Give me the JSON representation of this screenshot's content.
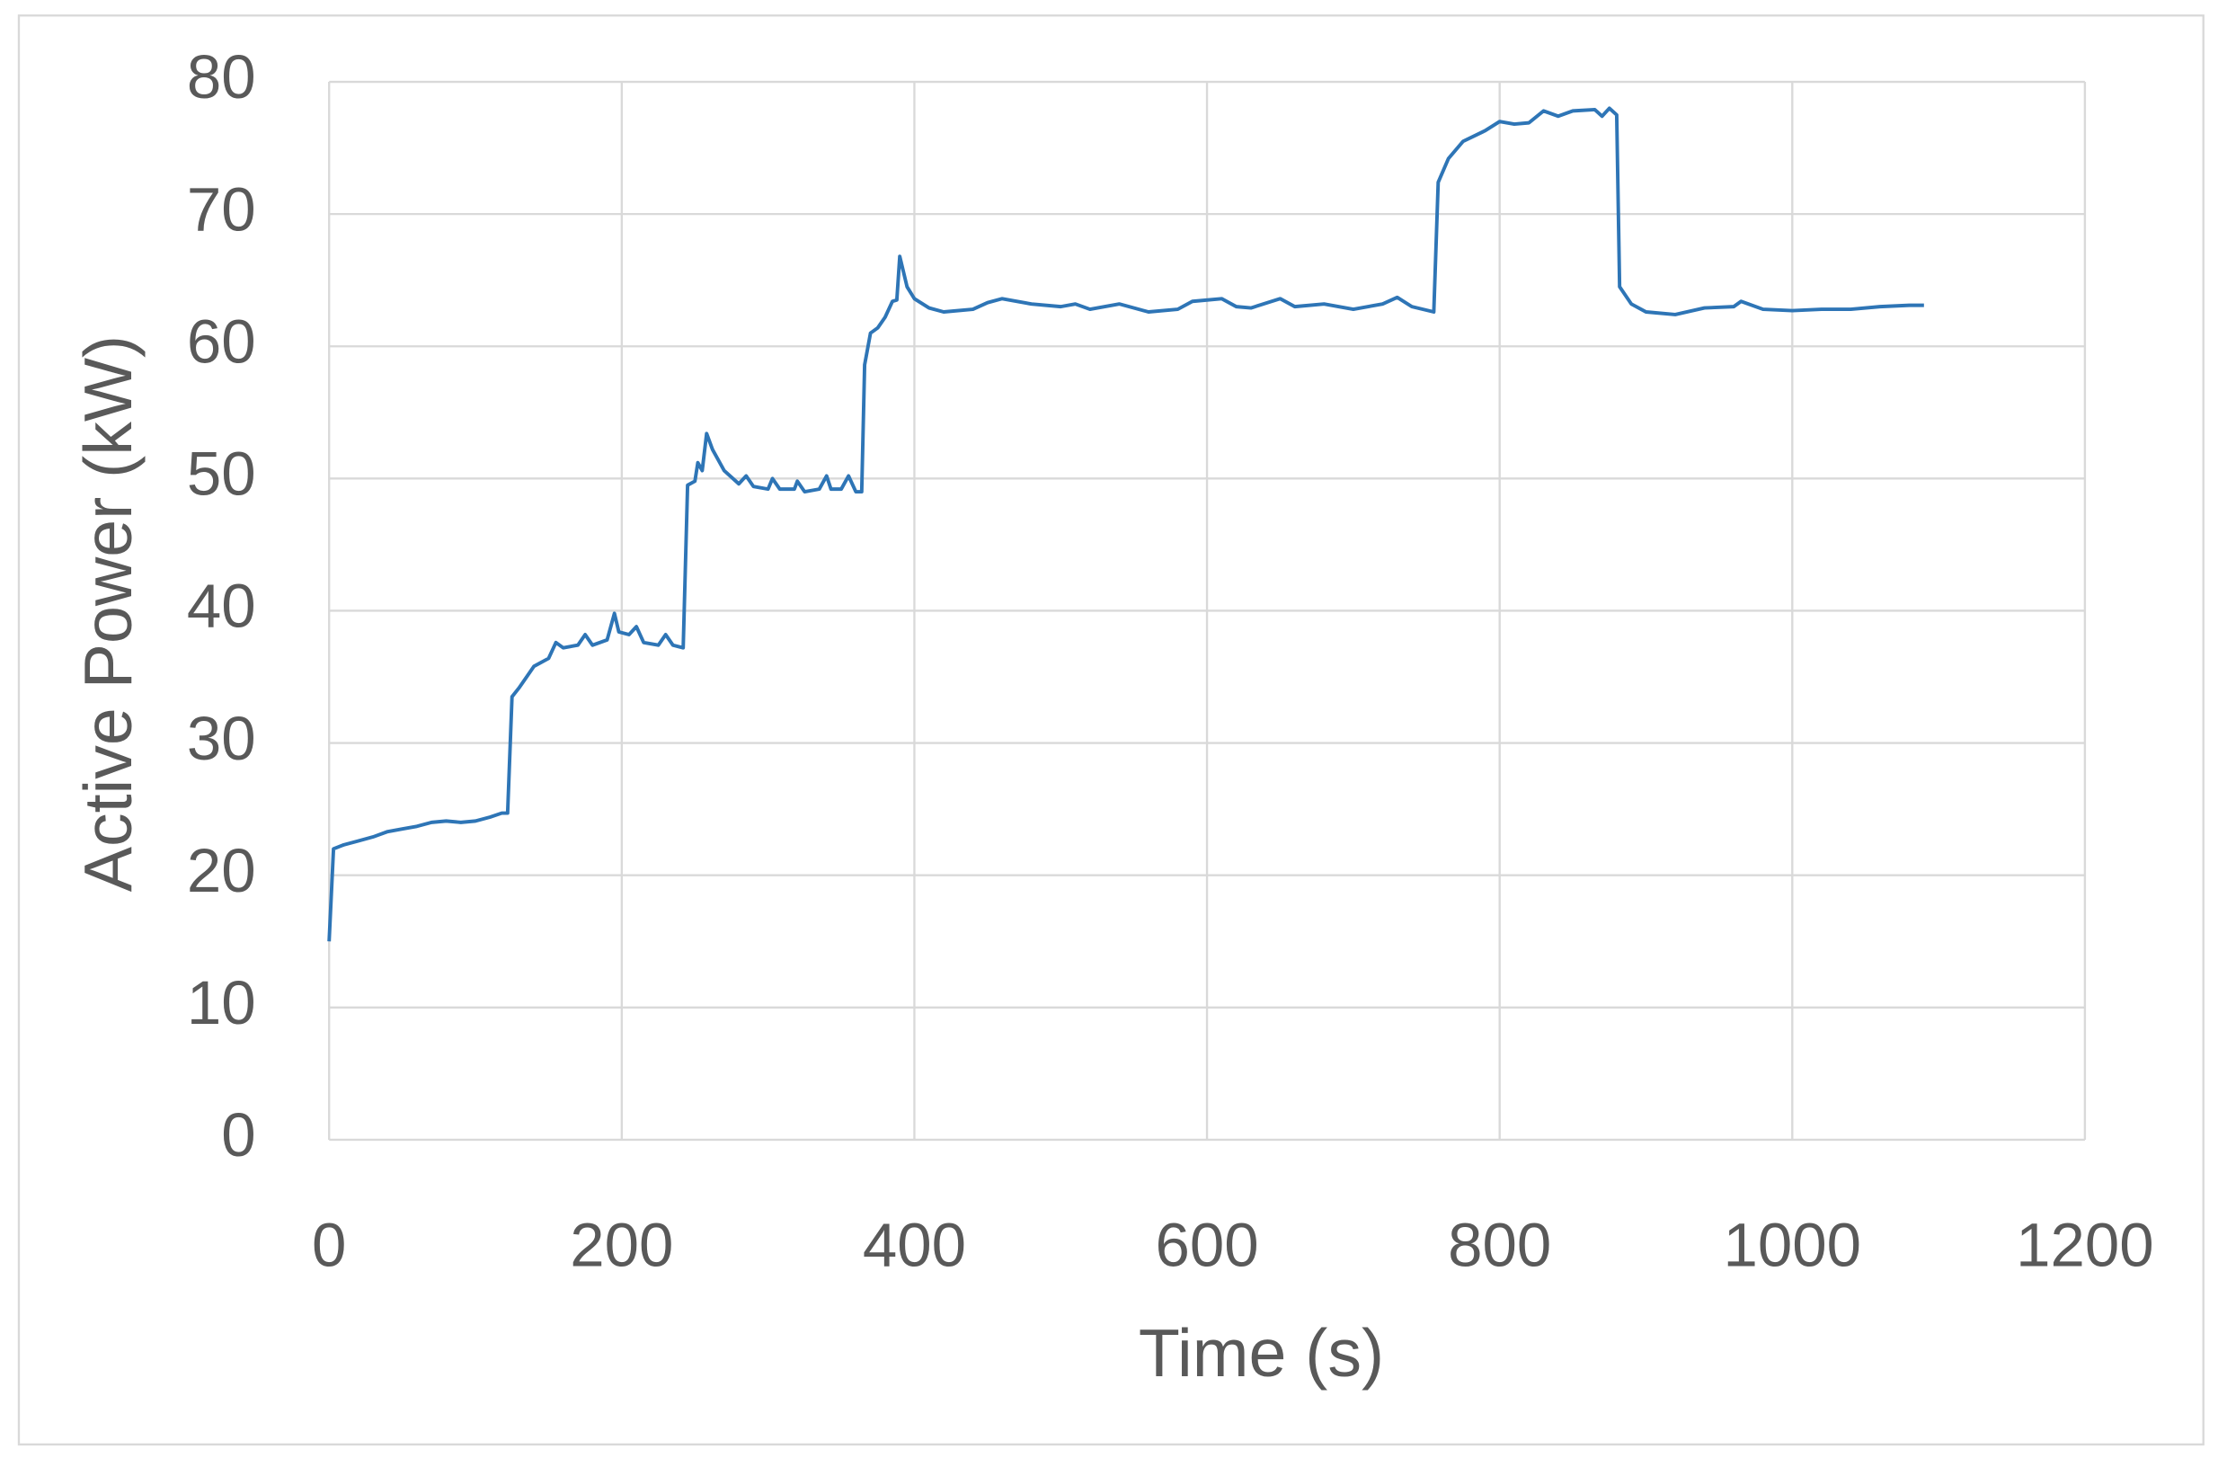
{
  "chart_data": {
    "type": "line",
    "x_label": "Time (s)",
    "y_label": "Active Power (kW)",
    "x": [
      0,
      3,
      10,
      20,
      30,
      40,
      50,
      60,
      70,
      80,
      90,
      100,
      110,
      118,
      122,
      125,
      130,
      140,
      150,
      155,
      160,
      170,
      175,
      180,
      190,
      195,
      198,
      205,
      210,
      215,
      225,
      230,
      235,
      242,
      245,
      250,
      252,
      255,
      258,
      262,
      270,
      280,
      285,
      290,
      300,
      303,
      308,
      318,
      320,
      325,
      335,
      340,
      343,
      350,
      355,
      360,
      364,
      366,
      370,
      375,
      380,
      385,
      388,
      390,
      395,
      400,
      410,
      420,
      440,
      450,
      460,
      480,
      500,
      510,
      520,
      540,
      560,
      580,
      590,
      610,
      620,
      630,
      650,
      660,
      680,
      700,
      720,
      730,
      740,
      755,
      758,
      765,
      775,
      790,
      800,
      810,
      820,
      830,
      840,
      850,
      865,
      870,
      875,
      880,
      882,
      890,
      900,
      920,
      940,
      960,
      965,
      980,
      1000,
      1020,
      1040,
      1060,
      1080,
      1090
    ],
    "values": [
      15,
      22,
      22.3,
      22.6,
      22.9,
      23.3,
      23.5,
      23.7,
      24,
      24.1,
      24,
      24.1,
      24.4,
      24.7,
      24.7,
      33.5,
      34.2,
      35.8,
      36.4,
      37.6,
      37.2,
      37.4,
      38.2,
      37.4,
      37.8,
      39.8,
      38.4,
      38.2,
      38.8,
      37.6,
      37.4,
      38.2,
      37.4,
      37.2,
      49.5,
      49.8,
      51.2,
      50.6,
      53.4,
      52.2,
      50.6,
      49.6,
      50.2,
      49.4,
      49.2,
      50,
      49.2,
      49.2,
      49.8,
      49,
      49.2,
      50.2,
      49.2,
      49.2,
      50.2,
      49,
      49,
      58.6,
      61,
      61.4,
      62.2,
      63.4,
      63.5,
      66.8,
      64.5,
      63.6,
      62.9,
      62.6,
      62.8,
      63.3,
      63.6,
      63.2,
      63,
      63.2,
      62.8,
      63.2,
      62.6,
      62.8,
      63.4,
      63.6,
      63,
      62.9,
      63.6,
      63,
      63.2,
      62.8,
      63.2,
      63.7,
      63,
      62.6,
      72.4,
      74.2,
      75.5,
      76.3,
      77,
      76.8,
      76.9,
      77.8,
      77.4,
      77.8,
      77.9,
      77.4,
      78,
      77.5,
      64.5,
      63.2,
      62.6,
      62.4,
      62.9,
      63,
      63.4,
      62.8,
      62.7,
      62.8,
      62.8,
      63,
      63.1,
      63.1
    ],
    "color": "#2e75b6",
    "xlim": [
      0,
      1200
    ],
    "xticks": [
      0,
      200,
      400,
      600,
      800,
      1000,
      1200
    ],
    "ylim": [
      0,
      80
    ],
    "yticks": [
      0,
      10,
      20,
      30,
      40,
      50,
      60,
      70,
      80
    ],
    "grid": true
  }
}
